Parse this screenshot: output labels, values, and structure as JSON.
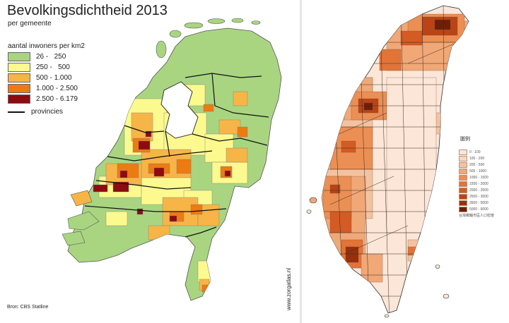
{
  "netherlands": {
    "title": "Bevolkingsdichtheid 2013",
    "subtitle": "per gemeente",
    "legend_title": "aantal inwoners per km2",
    "legend": [
      {
        "label": "26 -   250",
        "color": "#a9d581"
      },
      {
        "label": "250 -   500",
        "color": "#fcfa8e"
      },
      {
        "label": "500 - 1.000",
        "color": "#f7b547"
      },
      {
        "label": "1.000 - 2.500",
        "color": "#ee7a12"
      },
      {
        "label": "2.500 - 6.179",
        "color": "#8e0b10"
      }
    ],
    "boundary_label": "provincies",
    "source": "Bron: CBS Statline",
    "credit": "www.zorgatlas.nl"
  },
  "taiwan": {
    "legend_title": "圖例",
    "legend": [
      {
        "label": "0 - 100",
        "color": "#fbe6d7"
      },
      {
        "label": "100 - 200",
        "color": "#f9d8c2"
      },
      {
        "label": "200 - 500",
        "color": "#f5c29f"
      },
      {
        "label": "500 - 1000",
        "color": "#f0a877"
      },
      {
        "label": "1000 - 1500",
        "color": "#eb8f54"
      },
      {
        "label": "1500 - 2000",
        "color": "#e27438"
      },
      {
        "label": "2000 - 2500",
        "color": "#d45b23"
      },
      {
        "label": "2500 - 3500",
        "color": "#b94416"
      },
      {
        "label": "3500 - 5000",
        "color": "#97300d"
      },
      {
        "label": "5000 - 6000",
        "color": "#6e1f07"
      }
    ],
    "source": "台灣鄉鎮市區人口密度"
  }
}
